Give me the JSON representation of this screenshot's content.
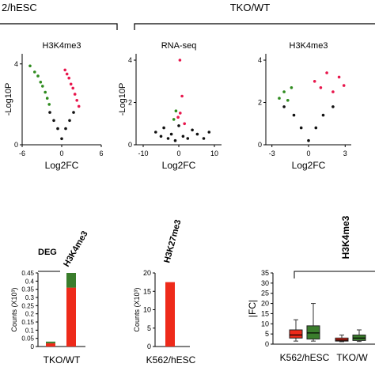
{
  "header": {
    "left_group": "2/hESC",
    "right_group": "TKO/WT"
  },
  "colors": {
    "down": "#2e8b1e",
    "up": "#e8174d",
    "ns": "#111111",
    "bar_red": "#ee2a1a",
    "bar_green": "#3a7d2c"
  },
  "chart_data": [
    {
      "type": "scatter",
      "title": "H3K4me3",
      "xlabel": "Log2FC",
      "ylabel": "-Log10P",
      "xticks": [
        "-6",
        "0",
        "6"
      ],
      "yticks": [
        "0",
        "4"
      ],
      "xlim": [
        -6,
        6
      ],
      "ylim": [
        0,
        4.5
      ],
      "series": [
        {
          "class": "down",
          "x": [
            -4.8,
            -4.1,
            -3.6,
            -3.2,
            -2.9,
            -2.5,
            -2.2,
            -1.9
          ],
          "y": [
            3.9,
            3.6,
            3.4,
            3.1,
            2.9,
            2.6,
            2.3,
            2.0
          ]
        },
        {
          "class": "up",
          "x": [
            0.5,
            0.8,
            1.1,
            1.4,
            1.7,
            2.0,
            2.3,
            2.6
          ],
          "y": [
            3.7,
            3.5,
            3.3,
            3.0,
            2.8,
            2.5,
            2.2,
            1.9
          ]
        },
        {
          "class": "ns",
          "x": [
            -1.8,
            -1.2,
            -0.6,
            0.0,
            0.6,
            1.2,
            1.8
          ],
          "y": [
            1.6,
            1.2,
            0.8,
            0.3,
            0.8,
            1.2,
            1.6
          ]
        }
      ]
    },
    {
      "type": "scatter",
      "title": "RNA-seq",
      "xlabel": "Log2FC",
      "ylabel": "-Log10P",
      "xticks": [
        "-10",
        "0",
        "10"
      ],
      "yticks": [
        "0",
        "2",
        "4"
      ],
      "xlim": [
        -12,
        12
      ],
      "ylim": [
        0,
        4.3
      ],
      "series": [
        {
          "class": "down",
          "x": [
            -1.4,
            -0.8
          ],
          "y": [
            1.2,
            1.6
          ]
        },
        {
          "class": "up",
          "x": [
            0.3,
            0.9,
            1.6,
            -0.2,
            0.4
          ],
          "y": [
            4.0,
            2.3,
            1.0,
            1.3,
            1.5
          ]
        },
        {
          "class": "ns",
          "x": [
            -6.5,
            -5.0,
            -4.2,
            -3.0,
            -2.1,
            -1.0,
            0.0,
            1.2,
            2.5,
            3.8,
            5.2,
            7.0,
            8.5
          ],
          "y": [
            0.6,
            0.4,
            0.8,
            0.3,
            0.5,
            0.2,
            0.9,
            0.4,
            0.3,
            0.7,
            0.5,
            0.3,
            0.6
          ]
        }
      ]
    },
    {
      "type": "scatter",
      "title": "H3K4me3",
      "xlabel": "Log2FC",
      "ylabel": "",
      "xticks": [
        "-3",
        "0",
        "3"
      ],
      "yticks": [
        "0",
        "2",
        "4"
      ],
      "xlim": [
        -3.5,
        3.5
      ],
      "ylim": [
        0,
        4.3
      ],
      "series": [
        {
          "class": "down",
          "x": [
            -2.4,
            -2.0,
            -1.7,
            -1.4
          ],
          "y": [
            2.2,
            2.5,
            2.1,
            2.7
          ]
        },
        {
          "class": "up",
          "x": [
            0.5,
            1.0,
            1.5,
            2.0,
            2.5,
            2.9
          ],
          "y": [
            3.0,
            2.7,
            3.4,
            2.5,
            3.2,
            2.8
          ]
        },
        {
          "class": "ns",
          "x": [
            -2.0,
            -1.2,
            -0.6,
            0.0,
            0.6,
            1.2,
            2.0
          ],
          "y": [
            1.8,
            1.4,
            0.8,
            0.2,
            0.8,
            1.4,
            1.8
          ]
        }
      ]
    },
    {
      "type": "bar",
      "series_headers": [
        "DEG",
        "H3K4me3"
      ],
      "categories": [
        "DEG",
        "H3K4me3"
      ],
      "series": [
        {
          "name": "red",
          "values": [
            0.02,
            0.36
          ]
        },
        {
          "name": "green",
          "values": [
            0.01,
            0.09
          ]
        }
      ],
      "ylabel": "Counts (X10³)",
      "xlabel": "TKO/WT",
      "yticks": [
        "0",
        "0.05",
        "0.1",
        "0.15",
        "0.2",
        "0.25",
        "0.3",
        "0.35",
        "0.4",
        "0.45"
      ],
      "ylim": [
        0,
        0.45
      ]
    },
    {
      "type": "bar",
      "series_headers": [
        "H3K27me3"
      ],
      "categories": [
        "H3K27me3"
      ],
      "series": [
        {
          "name": "red",
          "values": [
            17.5
          ]
        }
      ],
      "ylabel": "Counts (X10³)",
      "xlabel": "K562/hESC",
      "yticks": [
        "0",
        "5",
        "10",
        "15",
        "20"
      ],
      "ylim": [
        0,
        20
      ]
    },
    {
      "type": "box",
      "ylabel": "|FC|",
      "bracket_label": "H3K4me3",
      "yticks": [
        "0",
        "5",
        "10",
        "15",
        "20",
        "25",
        "30",
        "35"
      ],
      "ylim": [
        0,
        35
      ],
      "groups": [
        {
          "label": "K562/hESC",
          "boxes": [
            {
              "class": "red",
              "whisker_low": 1.5,
              "q1": 3.0,
              "median": 4.5,
              "q3": 7.0,
              "whisker_high": 12.0
            },
            {
              "class": "green",
              "whisker_low": 1.5,
              "q1": 2.5,
              "median": 5.5,
              "q3": 9.0,
              "whisker_high": 20.0
            }
          ]
        },
        {
          "label": "TKO/W",
          "boxes": [
            {
              "class": "red",
              "whisker_low": 1.2,
              "q1": 1.5,
              "median": 2.0,
              "q3": 3.0,
              "whisker_high": 4.5
            },
            {
              "class": "green",
              "whisker_low": 1.3,
              "q1": 1.8,
              "median": 3.0,
              "q3": 4.5,
              "whisker_high": 7.0
            }
          ]
        }
      ]
    }
  ]
}
